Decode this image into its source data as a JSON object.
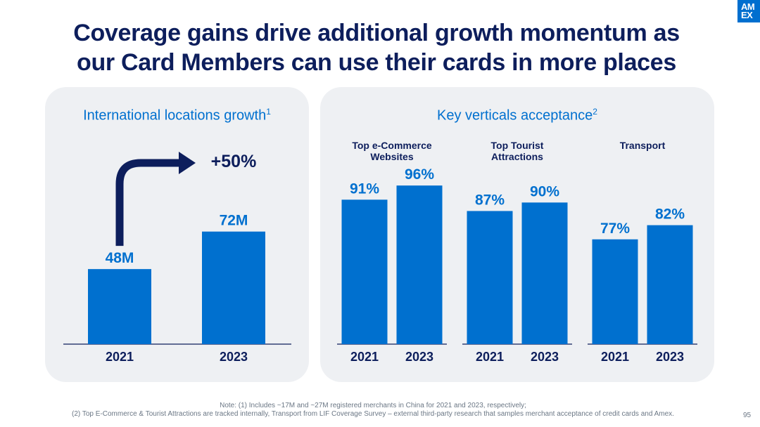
{
  "title_line1": "Coverage gains drive additional growth momentum as",
  "title_line2": "our Card Members can use their cards in more places",
  "logo_text_1": "AM",
  "logo_text_2": "EX",
  "colors": {
    "bar": "#0070cf",
    "title": "#0d1e5c",
    "arrow": "#0d1e5c",
    "panel": "#eef0f3"
  },
  "chart_data": [
    {
      "type": "bar",
      "title": "International locations growth",
      "title_sup": "1",
      "categories": [
        "2021",
        "2023"
      ],
      "values": [
        48,
        72
      ],
      "value_labels": [
        "48M",
        "72M"
      ],
      "ylim": [
        0,
        115
      ],
      "annotation": "+50%"
    },
    {
      "type": "bar",
      "title": "Key verticals acceptance",
      "title_sup": "2",
      "ylim": [
        40,
        101
      ],
      "groups": [
        {
          "name": "Top e-Commerce Websites",
          "name_lines": [
            "Top e-Commerce",
            "Websites"
          ],
          "categories": [
            "2021",
            "2023"
          ],
          "values": [
            91,
            96
          ],
          "value_labels": [
            "91%",
            "96%"
          ]
        },
        {
          "name": "Top Tourist Attractions",
          "name_lines": [
            "Top Tourist",
            "Attractions"
          ],
          "categories": [
            "2021",
            "2023"
          ],
          "values": [
            87,
            90
          ],
          "value_labels": [
            "87%",
            "90%"
          ]
        },
        {
          "name": "Transport",
          "name_lines": [
            "Transport"
          ],
          "categories": [
            "2021",
            "2023"
          ],
          "values": [
            77,
            82
          ],
          "value_labels": [
            "77%",
            "82%"
          ]
        }
      ]
    }
  ],
  "footnote_line1": "Note: (1) Includes ~17M and ~27M registered merchants in China for 2021 and 2023, respectively;",
  "footnote_line2": "(2) Top E-Commerce & Tourist Attractions are tracked internally, Transport from LIF Coverage Survey – external third-party research that samples merchant acceptance of credit cards and Amex.",
  "page_number": "95"
}
